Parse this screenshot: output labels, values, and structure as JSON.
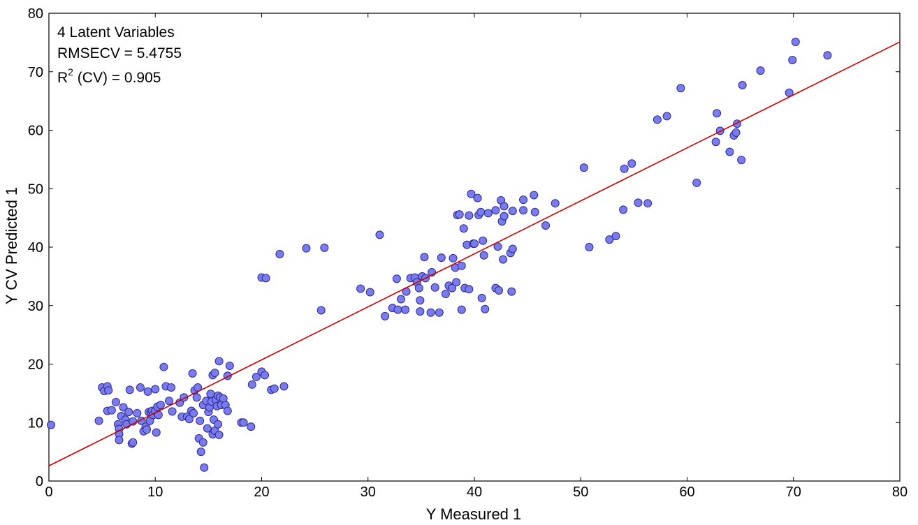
{
  "chart_data": {
    "type": "scatter",
    "xlabel": "Y Measured 1",
    "ylabel": "Y CV Predicted 1",
    "xlim": [
      0,
      80
    ],
    "ylim": [
      0,
      80
    ],
    "x_ticks": [
      "0",
      "10",
      "20",
      "30",
      "40",
      "50",
      "60",
      "70",
      "80"
    ],
    "y_ticks": [
      "0",
      "10",
      "20",
      "30",
      "40",
      "50",
      "60",
      "70",
      "80"
    ],
    "annotations": {
      "line1": "4 Latent Variables",
      "line2": "RMSECV = 5.4755",
      "line3_prefix": "R",
      "line3_sup": "2",
      "line3_suffix": " (CV) = 0.905"
    },
    "fit_line": {
      "color": "#cc0000",
      "x": [
        0,
        80
      ],
      "y": [
        2.6,
        75.1
      ]
    },
    "marker_fill": "#7b7bf0",
    "marker_stroke": "#2a2a8c",
    "grid": false,
    "series": [
      {
        "points": [
          [
            0.2,
            9.6
          ],
          [
            4.7,
            10.3
          ],
          [
            5.0,
            16.0
          ],
          [
            5.2,
            15.4
          ],
          [
            5.5,
            16.2
          ],
          [
            5.6,
            15.5
          ],
          [
            5.5,
            12.0
          ],
          [
            5.9,
            12.1
          ],
          [
            6.3,
            13.5
          ],
          [
            6.5,
            9.7
          ],
          [
            6.6,
            8.9
          ],
          [
            6.6,
            8.0
          ],
          [
            6.6,
            7.0
          ],
          [
            6.8,
            11.1
          ],
          [
            7.0,
            12.6
          ],
          [
            7.2,
            10.5
          ],
          [
            7.3,
            9.7
          ],
          [
            7.5,
            11.8
          ],
          [
            7.6,
            15.6
          ],
          [
            7.8,
            6.4
          ],
          [
            7.9,
            6.6
          ],
          [
            7.9,
            10.2
          ],
          [
            8.3,
            11.6
          ],
          [
            8.6,
            16.0
          ],
          [
            8.7,
            10.3
          ],
          [
            8.9,
            8.5
          ],
          [
            9.1,
            9.3
          ],
          [
            9.2,
            8.8
          ],
          [
            9.3,
            15.3
          ],
          [
            9.4,
            11.8
          ],
          [
            9.5,
            10.3
          ],
          [
            9.6,
            11.7
          ],
          [
            9.7,
            12.0
          ],
          [
            9.8,
            11.3
          ],
          [
            10.0,
            12.0
          ],
          [
            10.0,
            15.7
          ],
          [
            10.1,
            8.3
          ],
          [
            10.2,
            12.7
          ],
          [
            10.3,
            11.3
          ],
          [
            10.5,
            13.0
          ],
          [
            10.8,
            19.5
          ],
          [
            11.0,
            16.2
          ],
          [
            11.3,
            13.7
          ],
          [
            11.5,
            16.0
          ],
          [
            11.6,
            11.9
          ],
          [
            12.3,
            13.4
          ],
          [
            12.5,
            11.0
          ],
          [
            12.7,
            14.3
          ],
          [
            13.0,
            11.0
          ],
          [
            13.2,
            10.6
          ],
          [
            13.4,
            12.0
          ],
          [
            13.5,
            18.4
          ],
          [
            13.6,
            11.6
          ],
          [
            13.7,
            15.5
          ],
          [
            13.9,
            14.3
          ],
          [
            14.0,
            16.0
          ],
          [
            14.1,
            7.3
          ],
          [
            14.2,
            10.3
          ],
          [
            14.3,
            5.0
          ],
          [
            14.5,
            6.6
          ],
          [
            14.5,
            13.0
          ],
          [
            14.6,
            2.3
          ],
          [
            14.8,
            13.7
          ],
          [
            14.9,
            9.0
          ],
          [
            15.0,
            11.8
          ],
          [
            15.1,
            12.6
          ],
          [
            15.2,
            14.9
          ],
          [
            15.3,
            13.6
          ],
          [
            15.4,
            8.0
          ],
          [
            15.4,
            18.1
          ],
          [
            15.5,
            10.5
          ],
          [
            15.6,
            8.6
          ],
          [
            15.6,
            18.5
          ],
          [
            15.7,
            13.9
          ],
          [
            15.8,
            12.8
          ],
          [
            15.9,
            9.7
          ],
          [
            15.9,
            14.6
          ],
          [
            16.0,
            20.5
          ],
          [
            16.0,
            7.9
          ],
          [
            16.1,
            14.3
          ],
          [
            16.2,
            13.0
          ],
          [
            16.4,
            14.1
          ],
          [
            16.6,
            13.0
          ],
          [
            16.8,
            12.0
          ],
          [
            16.8,
            18.0
          ],
          [
            17.0,
            19.7
          ],
          [
            18.1,
            10.0
          ],
          [
            18.3,
            10.0
          ],
          [
            19.0,
            9.3
          ],
          [
            19.1,
            16.5
          ],
          [
            19.5,
            17.8
          ],
          [
            20.0,
            34.8
          ],
          [
            20.0,
            18.7
          ],
          [
            20.3,
            18.1
          ],
          [
            20.4,
            34.7
          ],
          [
            20.9,
            15.6
          ],
          [
            21.2,
            15.8
          ],
          [
            21.7,
            38.8
          ],
          [
            22.1,
            16.2
          ],
          [
            24.2,
            39.8
          ],
          [
            25.6,
            29.2
          ],
          [
            25.9,
            39.9
          ],
          [
            29.3,
            32.9
          ],
          [
            30.2,
            32.3
          ],
          [
            31.1,
            42.1
          ],
          [
            31.6,
            28.2
          ],
          [
            32.3,
            29.6
          ],
          [
            32.7,
            34.6
          ],
          [
            32.8,
            29.3
          ],
          [
            33.1,
            31.1
          ],
          [
            33.5,
            29.3
          ],
          [
            33.6,
            32.4
          ],
          [
            34.0,
            34.7
          ],
          [
            34.4,
            34.8
          ],
          [
            34.6,
            34.0
          ],
          [
            34.8,
            33.0
          ],
          [
            34.9,
            29.0
          ],
          [
            34.9,
            30.9
          ],
          [
            35.1,
            35.0
          ],
          [
            35.3,
            38.3
          ],
          [
            35.4,
            34.7
          ],
          [
            35.9,
            28.8
          ],
          [
            36.0,
            35.7
          ],
          [
            36.3,
            33.1
          ],
          [
            36.7,
            28.8
          ],
          [
            36.9,
            38.2
          ],
          [
            37.3,
            32.0
          ],
          [
            37.6,
            33.4
          ],
          [
            37.9,
            33.0
          ],
          [
            38.0,
            38.1
          ],
          [
            38.2,
            36.5
          ],
          [
            38.3,
            34.0
          ],
          [
            38.4,
            45.5
          ],
          [
            38.6,
            45.6
          ],
          [
            38.8,
            36.8
          ],
          [
            38.8,
            29.3
          ],
          [
            39.0,
            43.2
          ],
          [
            39.1,
            33.0
          ],
          [
            39.3,
            40.4
          ],
          [
            39.5,
            45.4
          ],
          [
            39.5,
            32.8
          ],
          [
            39.7,
            49.1
          ],
          [
            39.9,
            40.6
          ],
          [
            40.0,
            40.6
          ],
          [
            40.3,
            48.4
          ],
          [
            40.4,
            45.5
          ],
          [
            40.6,
            46.0
          ],
          [
            40.7,
            31.3
          ],
          [
            40.8,
            41.1
          ],
          [
            40.9,
            38.6
          ],
          [
            41.0,
            29.4
          ],
          [
            41.3,
            45.8
          ],
          [
            42.0,
            46.3
          ],
          [
            42.0,
            33.0
          ],
          [
            42.2,
            40.1
          ],
          [
            42.3,
            32.6
          ],
          [
            42.5,
            48.0
          ],
          [
            42.6,
            44.4
          ],
          [
            42.7,
            37.9
          ],
          [
            42.8,
            47.0
          ],
          [
            42.8,
            45.3
          ],
          [
            43.4,
            39.0
          ],
          [
            43.5,
            32.4
          ],
          [
            43.6,
            39.7
          ],
          [
            43.6,
            46.2
          ],
          [
            44.6,
            48.1
          ],
          [
            44.6,
            46.3
          ],
          [
            45.6,
            48.9
          ],
          [
            45.7,
            46.0
          ],
          [
            46.7,
            43.7
          ],
          [
            47.6,
            47.5
          ],
          [
            50.3,
            53.6
          ],
          [
            50.8,
            40.0
          ],
          [
            52.7,
            41.3
          ],
          [
            53.3,
            41.9
          ],
          [
            54.0,
            46.4
          ],
          [
            54.1,
            53.4
          ],
          [
            54.8,
            54.3
          ],
          [
            55.4,
            47.6
          ],
          [
            56.3,
            47.5
          ],
          [
            57.2,
            61.8
          ],
          [
            58.1,
            62.4
          ],
          [
            59.4,
            67.2
          ],
          [
            60.9,
            51.0
          ],
          [
            62.7,
            58.0
          ],
          [
            62.8,
            62.9
          ],
          [
            63.1,
            59.9
          ],
          [
            64.0,
            56.3
          ],
          [
            64.4,
            59.1
          ],
          [
            64.6,
            59.6
          ],
          [
            64.7,
            61.1
          ],
          [
            65.1,
            54.9
          ],
          [
            65.2,
            67.7
          ],
          [
            66.9,
            70.2
          ],
          [
            69.6,
            66.4
          ],
          [
            69.9,
            72.0
          ],
          [
            70.2,
            75.1
          ],
          [
            73.2,
            72.8
          ]
        ]
      }
    ]
  }
}
